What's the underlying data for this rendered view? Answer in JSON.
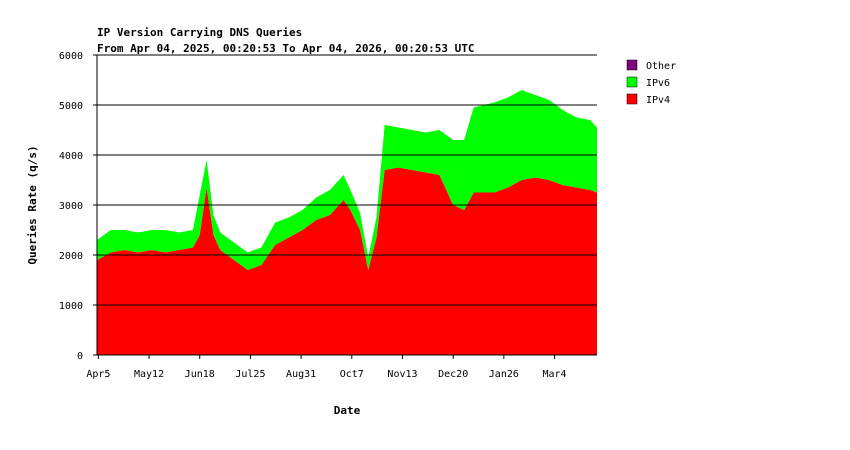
{
  "chart_data": {
    "type": "area",
    "stacked": true,
    "title": "IP Version Carrying DNS Queries",
    "subtitle": "From Apr 04, 2025, 00:20:53 To Apr 04, 2026, 00:20:53 UTC",
    "xlabel": "Date",
    "ylabel": "Queries Rate (q/s)",
    "ylim": [
      0,
      6000
    ],
    "y_ticks": [
      0,
      1000,
      2000,
      3000,
      4000,
      5000,
      6000
    ],
    "grid": "horizontal",
    "legend_position": "right",
    "x_tick_labels": [
      "Apr5",
      "May12",
      "Jun18",
      "Jul25",
      "Aug31",
      "Oct7",
      "Nov13",
      "Dec20",
      "Jan26",
      "Mar4"
    ],
    "x_tick_days": [
      1,
      38,
      75,
      112,
      149,
      186,
      223,
      260,
      297,
      334
    ],
    "x_range_days": [
      0,
      365
    ],
    "legend": [
      {
        "name": "Other",
        "color": "#800080"
      },
      {
        "name": "IPv6",
        "color": "#00ff00"
      },
      {
        "name": "IPv4",
        "color": "#ff0000"
      }
    ],
    "series": [
      {
        "name": "IPv4",
        "color": "#ff0000",
        "points": [
          [
            0,
            1900
          ],
          [
            10,
            2050
          ],
          [
            20,
            2100
          ],
          [
            30,
            2050
          ],
          [
            40,
            2100
          ],
          [
            50,
            2050
          ],
          [
            60,
            2100
          ],
          [
            70,
            2150
          ],
          [
            75,
            2400
          ],
          [
            80,
            3350
          ],
          [
            85,
            2400
          ],
          [
            90,
            2100
          ],
          [
            100,
            1900
          ],
          [
            110,
            1700
          ],
          [
            120,
            1800
          ],
          [
            130,
            2200
          ],
          [
            140,
            2350
          ],
          [
            150,
            2500
          ],
          [
            160,
            2700
          ],
          [
            170,
            2800
          ],
          [
            180,
            3100
          ],
          [
            185,
            2900
          ],
          [
            192,
            2500
          ],
          [
            198,
            1700
          ],
          [
            204,
            2350
          ],
          [
            210,
            3700
          ],
          [
            220,
            3750
          ],
          [
            230,
            3700
          ],
          [
            240,
            3650
          ],
          [
            250,
            3600
          ],
          [
            260,
            3000
          ],
          [
            268,
            2900
          ],
          [
            275,
            3250
          ],
          [
            290,
            3250
          ],
          [
            300,
            3350
          ],
          [
            310,
            3500
          ],
          [
            320,
            3550
          ],
          [
            330,
            3500
          ],
          [
            340,
            3400
          ],
          [
            350,
            3350
          ],
          [
            360,
            3300
          ],
          [
            365,
            3250
          ]
        ]
      },
      {
        "name": "IPv6",
        "color": "#00ff00",
        "points": [
          [
            0,
            400
          ],
          [
            10,
            450
          ],
          [
            20,
            400
          ],
          [
            30,
            400
          ],
          [
            40,
            400
          ],
          [
            50,
            450
          ],
          [
            60,
            350
          ],
          [
            70,
            350
          ],
          [
            75,
            800
          ],
          [
            80,
            550
          ],
          [
            85,
            400
          ],
          [
            90,
            350
          ],
          [
            100,
            350
          ],
          [
            110,
            350
          ],
          [
            120,
            350
          ],
          [
            130,
            450
          ],
          [
            140,
            400
          ],
          [
            150,
            400
          ],
          [
            160,
            450
          ],
          [
            170,
            500
          ],
          [
            180,
            500
          ],
          [
            185,
            400
          ],
          [
            192,
            350
          ],
          [
            198,
            250
          ],
          [
            204,
            400
          ],
          [
            210,
            900
          ],
          [
            220,
            800
          ],
          [
            230,
            800
          ],
          [
            240,
            800
          ],
          [
            250,
            900
          ],
          [
            260,
            1300
          ],
          [
            268,
            1400
          ],
          [
            275,
            1700
          ],
          [
            290,
            1800
          ],
          [
            300,
            1800
          ],
          [
            310,
            1800
          ],
          [
            320,
            1650
          ],
          [
            330,
            1600
          ],
          [
            340,
            1500
          ],
          [
            350,
            1400
          ],
          [
            360,
            1400
          ],
          [
            365,
            1300
          ]
        ]
      },
      {
        "name": "Other",
        "color": "#800080",
        "points": [
          [
            0,
            0
          ],
          [
            365,
            0
          ]
        ]
      }
    ]
  }
}
